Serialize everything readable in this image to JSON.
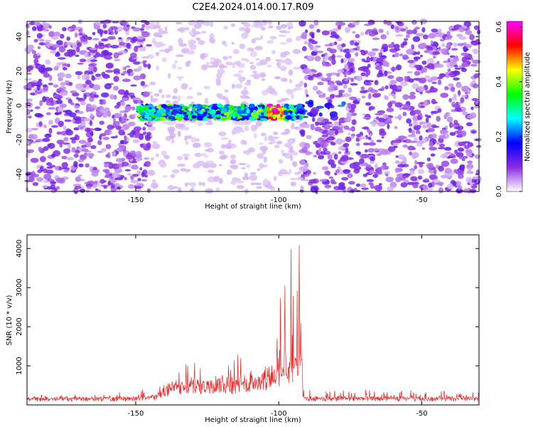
{
  "figure": {
    "title": "C2E4.2024.014.00.17.R09"
  },
  "chart_data": [
    {
      "type": "heatmap",
      "xlabel": "Height of straight line (km)",
      "ylabel": "Frequency (Hz)",
      "xlim": [
        -188,
        -30
      ],
      "ylim": [
        -50,
        49
      ],
      "x_ticks": [
        -150,
        -100,
        -50
      ],
      "x_tick_labels": [
        "-150",
        "-100",
        "-50"
      ],
      "y_ticks": [
        -40,
        -20,
        0,
        20,
        40
      ],
      "y_tick_labels": [
        "-40",
        "-20",
        "0",
        "20",
        "40"
      ],
      "grid": false,
      "colorbar": {
        "label": "Normalized spectral amplitude",
        "range": [
          0.0,
          0.62
        ],
        "ticks": [
          0.0,
          0.2,
          0.4,
          0.6
        ],
        "tick_labels": [
          "0.0",
          "0.2",
          "0.4",
          "0.6"
        ],
        "colors": [
          "#ffffff",
          "#8a2be2",
          "#0000ff",
          "#00ffff",
          "#00ff00",
          "#ffff00",
          "#ff0000",
          "#ff00ff"
        ]
      },
      "regions": [
        {
          "name": "noise",
          "x_range": [
            -188,
            -145
          ],
          "y_range": [
            -50,
            49
          ],
          "level": 0.07
        },
        {
          "name": "quiet",
          "x_range": [
            -145,
            -92
          ],
          "y_range": [
            -50,
            49
          ],
          "level": 0.02
        },
        {
          "name": "noise",
          "x_range": [
            -92,
            -30
          ],
          "y_range": [
            -50,
            49
          ],
          "level": 0.07
        }
      ],
      "signal_band": {
        "x_range": [
          -149,
          -92
        ],
        "center_freq": -4,
        "half_width": 4,
        "peak_level": 0.55,
        "peak_x": -101
      },
      "secondary_band": {
        "x_range": [
          -92,
          -76
        ],
        "center_freq": -3,
        "half_width": 5,
        "level": 0.18
      }
    },
    {
      "type": "line",
      "xlabel": "Height of straight line (km)",
      "ylabel": "SNR (10 * v/v)",
      "xlim": [
        -188,
        -30
      ],
      "ylim": [
        0,
        4350
      ],
      "x_ticks": [
        -150,
        -100,
        -50
      ],
      "x_tick_labels": [
        "-150",
        "-100",
        "-50"
      ],
      "y_ticks": [
        1000,
        2000,
        3000,
        4000
      ],
      "y_tick_labels": [
        "1000",
        "2000",
        "3000",
        "4000"
      ],
      "grid": false,
      "series": [
        {
          "color": "#ee2222",
          "envelope": {
            "x": [
              -188,
              -150,
              -142,
              -140,
              -135,
              -130,
              -125,
              -120,
              -116,
              -110,
              -105,
              -101,
              -98,
              -96,
              -94,
              -93,
              -92,
              -91.5,
              -91,
              -80,
              -30
            ],
            "baseline": [
              150,
              150,
              200,
              350,
              400,
              450,
              450,
              500,
              450,
              550,
              600,
              700,
              800,
              900,
              1000,
              1100,
              1200,
              150,
              150,
              150,
              150
            ],
            "peak": [
              250,
              350,
              500,
              1000,
              900,
              1400,
              1200,
              1550,
              1300,
              1400,
              1700,
              2400,
              3100,
              4100,
              3700,
              4200,
              4300,
              400,
              400,
              400,
              350
            ]
          },
          "samples_per_km": 7
        }
      ]
    }
  ]
}
